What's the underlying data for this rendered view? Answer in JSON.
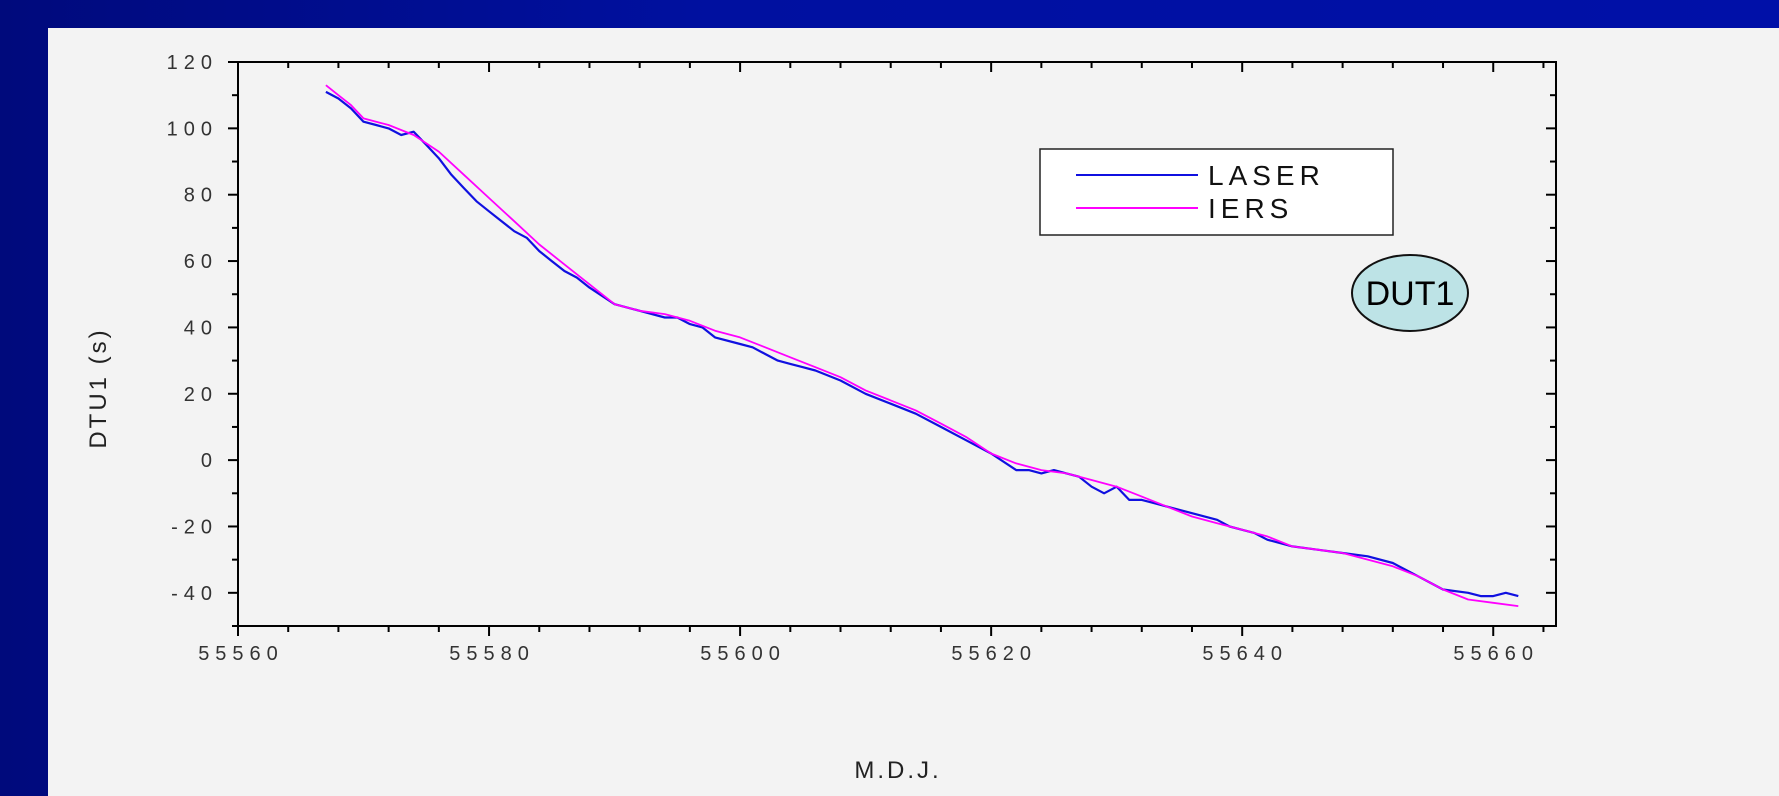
{
  "chart_data": {
    "type": "line",
    "xlabel": "M.D.J.",
    "ylabel": "DTU1 (s)",
    "xlim": [
      55560,
      55665
    ],
    "ylim": [
      -50,
      120
    ],
    "xticks": [
      55560,
      55580,
      55600,
      55620,
      55640,
      55660
    ],
    "yticks": [
      -40,
      -20,
      0,
      20,
      40,
      60,
      80,
      100,
      120
    ],
    "grid": false,
    "legend_position": "top-right",
    "annotation": "DUT1",
    "series": [
      {
        "name": "LASER",
        "color": "#1010e0",
        "x": [
          55567,
          55568,
          55569,
          55570,
          55571,
          55572,
          55573,
          55574,
          55575,
          55576,
          55577,
          55578,
          55579,
          55580,
          55581,
          55582,
          55583,
          55584,
          55585,
          55586,
          55587,
          55588,
          55590,
          55592,
          55594,
          55595,
          55596,
          55597,
          55598,
          55600,
          55601,
          55602,
          55603,
          55604,
          55605,
          55606,
          55608,
          55610,
          55612,
          55614,
          55616,
          55618,
          55620,
          55622,
          55623,
          55624,
          55625,
          55626,
          55627,
          55628,
          55629,
          55630,
          55631,
          55632,
          55633,
          55634,
          55636,
          55638,
          55639,
          55640,
          55641,
          55642,
          55644,
          55646,
          55648,
          55650,
          55652,
          55654,
          55655,
          55656,
          55658,
          55659,
          55660,
          55661,
          55662
        ],
        "values": [
          111,
          109,
          106,
          102,
          101,
          100,
          98,
          99,
          95,
          91,
          86,
          82,
          78,
          75,
          72,
          69,
          67,
          63,
          60,
          57,
          55,
          52,
          47,
          45,
          43,
          43,
          41,
          40,
          37,
          35,
          34,
          32,
          30,
          29,
          28,
          27,
          24,
          20,
          17,
          14,
          10,
          6,
          2,
          -3,
          -3,
          -4,
          -3,
          -4,
          -5,
          -8,
          -10,
          -8,
          -12,
          -12,
          -13,
          -14,
          -16,
          -18,
          -20,
          -21,
          -22,
          -24,
          -26,
          -27,
          -28,
          -29,
          -31,
          -35,
          -37,
          -39,
          -40,
          -41,
          -41,
          -40,
          -41
        ]
      },
      {
        "name": "IERS",
        "color": "#ff00ff",
        "x": [
          55567,
          55568,
          55569,
          55570,
          55572,
          55574,
          55576,
          55578,
          55580,
          55582,
          55584,
          55586,
          55588,
          55590,
          55592,
          55594,
          55596,
          55598,
          55600,
          55602,
          55604,
          55606,
          55608,
          55610,
          55612,
          55614,
          55616,
          55618,
          55620,
          55622,
          55624,
          55626,
          55628,
          55630,
          55632,
          55634,
          55636,
          55638,
          55640,
          55642,
          55644,
          55646,
          55648,
          55650,
          55652,
          55654,
          55656,
          55658,
          55660,
          55662
        ],
        "values": [
          113,
          110,
          107,
          103,
          101,
          98,
          93,
          86,
          79,
          72,
          65,
          59,
          53,
          47,
          45,
          44,
          42,
          39,
          37,
          34,
          31,
          28,
          25,
          21,
          18,
          15,
          11,
          7,
          2,
          -1,
          -3,
          -4,
          -6,
          -8,
          -11,
          -14,
          -17,
          -19,
          -21,
          -23,
          -26,
          -27,
          -28,
          -30,
          -32,
          -35,
          -39,
          -42,
          -43,
          -44
        ]
      }
    ]
  }
}
